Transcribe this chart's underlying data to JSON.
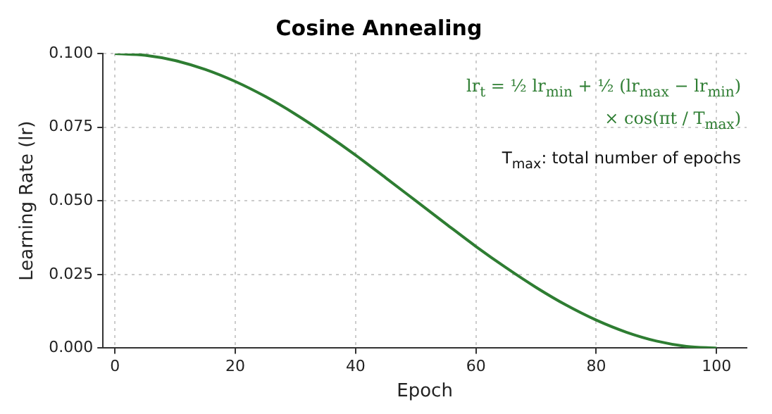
{
  "chart_data": {
    "type": "line",
    "title": "Cosine Annealing",
    "xlabel": "Epoch",
    "ylabel": "Learning Rate (lr)",
    "x": [
      0,
      5,
      10,
      15,
      20,
      25,
      30,
      35,
      40,
      45,
      50,
      55,
      60,
      65,
      70,
      75,
      80,
      85,
      90,
      95,
      100
    ],
    "series": [
      {
        "color": "#2e7d32",
        "values": [
          0.1,
          0.0994,
          0.0976,
          0.0946,
          0.0905,
          0.0854,
          0.0794,
          0.0727,
          0.0655,
          0.0578,
          0.05,
          0.0422,
          0.0345,
          0.0273,
          0.0206,
          0.0146,
          0.0095,
          0.0054,
          0.0024,
          0.0006,
          0
        ]
      }
    ],
    "xlim": [
      -2,
      105
    ],
    "xticks": [
      0,
      20,
      40,
      60,
      80,
      100
    ],
    "ylim": [
      0,
      0.1
    ],
    "yticks": [
      {
        "value": 0,
        "label": "0.000"
      },
      {
        "value": 0.025,
        "label": "0.025"
      },
      {
        "value": 0.05,
        "label": "0.050"
      },
      {
        "value": 0.075,
        "label": "0.075"
      },
      {
        "value": 0.1,
        "label": "0.100"
      }
    ],
    "grid": true,
    "legend": false,
    "marker": "none",
    "line_style": "solid",
    "annotations": [
      "lr$_{t}$ = ½ lr$_{min}$ + ½ (lr$_{max}$ − lr$_{min}$)",
      "× cos(πt / T$_{max}$)",
      "T$_{max}$: total number of epochs"
    ]
  }
}
